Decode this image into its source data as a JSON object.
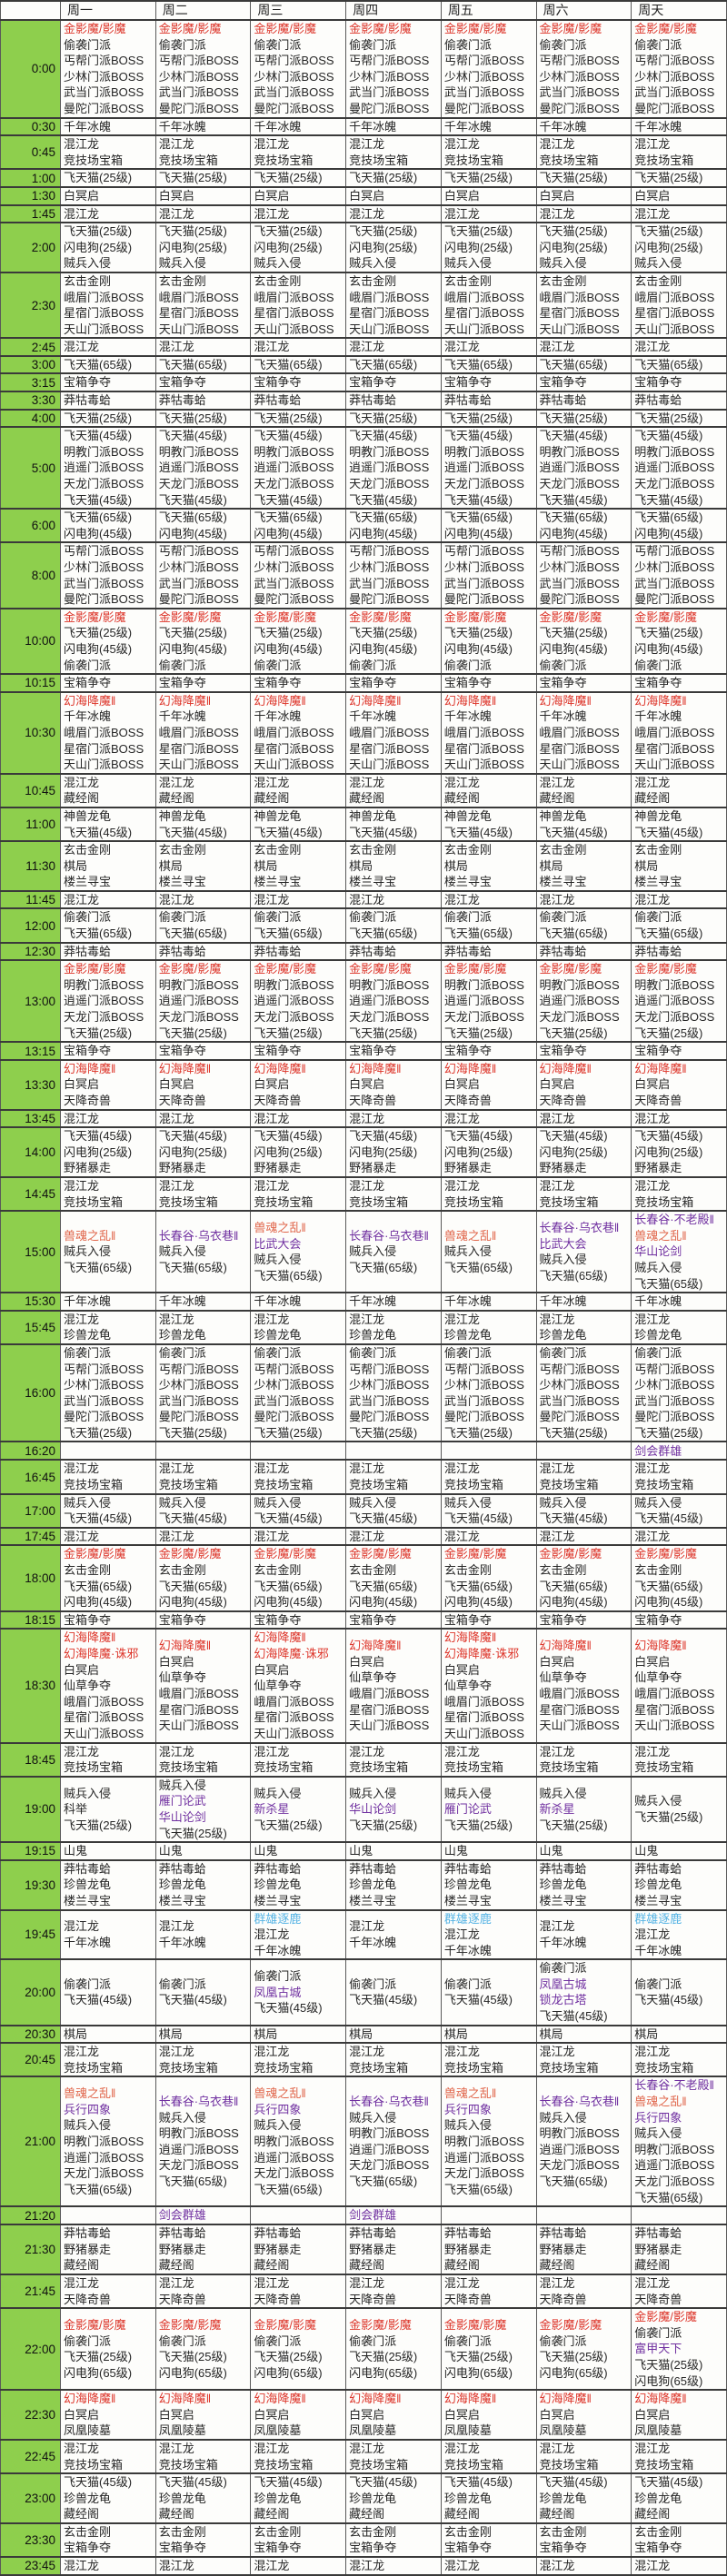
{
  "table": {
    "title": "weekly-event-schedule",
    "corner_label": "",
    "days": [
      "周一",
      "周二",
      "周三",
      "周四",
      "周五",
      "周六",
      "周天"
    ],
    "colors": {
      "time_column_green": "#8ecf4d",
      "event_red": "#dd352a",
      "event_orange_red": "#e0654a",
      "event_purple": "#7030a0",
      "event_light_blue": "#55b3e4",
      "grid_line": "#3a3a3a",
      "cell_background": "#fdfdfb"
    },
    "rows": [
      {
        "time": "0:00",
        "all": [
          {
            "t": "金影魔/影魔",
            "c": "red"
          },
          "偷袭门派",
          "丐帮门派BOSS",
          "少林门派BOSS",
          "武当门派BOSS",
          "曼陀门派BOSS"
        ]
      },
      {
        "time": "0:30",
        "all": [
          "千年冰魄"
        ]
      },
      {
        "time": "0:45",
        "all": [
          "混江龙",
          "竞技场宝箱"
        ]
      },
      {
        "time": "1:00",
        "all": [
          "飞天猫(25级)"
        ]
      },
      {
        "time": "1:30",
        "all": [
          "白冥启"
        ]
      },
      {
        "time": "1:45",
        "all": [
          "混江龙"
        ]
      },
      {
        "time": "2:00",
        "all": [
          "飞天猫(25级)",
          "闪电狗(25级)",
          "贼兵入侵"
        ]
      },
      {
        "time": "2:30",
        "all": [
          "玄击金刚",
          "峨眉门派BOSS",
          "星宿门派BOSS",
          "天山门派BOSS"
        ]
      },
      {
        "time": "2:45",
        "all": [
          "混江龙"
        ]
      },
      {
        "time": "3:00",
        "all": [
          "飞天猫(65级)"
        ]
      },
      {
        "time": "3:15",
        "all": [
          "宝箱争夺"
        ]
      },
      {
        "time": "3:30",
        "all": [
          "莽牯毒蛤"
        ]
      },
      {
        "time": "4:00",
        "all": [
          "飞天猫(25级)"
        ]
      },
      {
        "time": "5:00",
        "all": [
          "飞天猫(45级)",
          "明教门派BOSS",
          "逍遥门派BOSS",
          "天龙门派BOSS",
          "飞天猫(45级)"
        ]
      },
      {
        "time": "6:00",
        "all": [
          "飞天猫(65级)",
          "闪电狗(45级)"
        ]
      },
      {
        "time": "8:00",
        "all": [
          "丐帮门派BOSS",
          "少林门派BOSS",
          "武当门派BOSS",
          "曼陀门派BOSS"
        ]
      },
      {
        "time": "10:00",
        "all": [
          {
            "t": "金影魔/影魔",
            "c": "red"
          },
          "飞天猫(25级)",
          "闪电狗(45级)",
          "偷袭门派"
        ]
      },
      {
        "time": "10:15",
        "all": [
          "宝箱争夺"
        ]
      },
      {
        "time": "10:30",
        "all": [
          {
            "t": "幻海降魔‖",
            "c": "red"
          },
          "千年冰魄",
          "峨眉门派BOSS",
          "星宿门派BOSS",
          "天山门派BOSS"
        ]
      },
      {
        "time": "10:45",
        "all": [
          "混江龙",
          "藏经阁"
        ]
      },
      {
        "time": "11:00",
        "all": [
          "神兽龙龟",
          "飞天猫(45级)"
        ]
      },
      {
        "time": "11:30",
        "all": [
          "玄击金刚",
          "棋局",
          "楼兰寻宝"
        ]
      },
      {
        "time": "11:45",
        "all": [
          "混江龙"
        ]
      },
      {
        "time": "12:00",
        "all": [
          "偷袭门派",
          "飞天猫(65级)"
        ]
      },
      {
        "time": "12:30",
        "all": [
          "莽牯毒蛤"
        ]
      },
      {
        "time": "13:00",
        "all": [
          {
            "t": "金影魔/影魔",
            "c": "red"
          },
          "明教门派BOSS",
          "逍遥门派BOSS",
          "天龙门派BOSS",
          "飞天猫(25级)"
        ]
      },
      {
        "time": "13:15",
        "all": [
          "宝箱争夺"
        ]
      },
      {
        "time": "13:30",
        "all": [
          {
            "t": "幻海降魔‖",
            "c": "red"
          },
          "白冥启",
          "天降奇兽"
        ]
      },
      {
        "time": "13:45",
        "all": [
          "混江龙"
        ]
      },
      {
        "time": "14:00",
        "all": [
          "飞天猫(45级)",
          "闪电狗(25级)",
          "野猪暴走"
        ]
      },
      {
        "time": "14:45",
        "all": [
          "混江龙",
          "竞技场宝箱"
        ]
      },
      {
        "time": "15:00",
        "cells": [
          [
            {
              "t": "兽魂之乱‖",
              "c": "orange"
            },
            "贼兵入侵",
            "飞天猫(65级)"
          ],
          [
            {
              "t": "长春谷·乌衣巷‖",
              "c": "purple"
            },
            "贼兵入侵",
            "飞天猫(65级)"
          ],
          [
            {
              "t": "兽魂之乱‖",
              "c": "orange"
            },
            {
              "t": "比武大会",
              "c": "purple"
            },
            "贼兵入侵",
            "飞天猫(65级)"
          ],
          [
            {
              "t": "长春谷·乌衣巷‖",
              "c": "purple"
            },
            "贼兵入侵",
            "飞天猫(65级)"
          ],
          [
            {
              "t": "兽魂之乱‖",
              "c": "orange"
            },
            "贼兵入侵",
            "飞天猫(65级)"
          ],
          [
            {
              "t": "长春谷·乌衣巷‖",
              "c": "purple"
            },
            {
              "t": "比武大会",
              "c": "purple"
            },
            "贼兵入侵",
            "飞天猫(65级)"
          ],
          [
            {
              "t": "长春谷·不老殿‖",
              "c": "purple"
            },
            {
              "t": "兽魂之乱‖",
              "c": "orange"
            },
            {
              "t": "华山论剑",
              "c": "purple"
            },
            "贼兵入侵",
            "飞天猫(65级)"
          ]
        ]
      },
      {
        "time": "15:30",
        "all": [
          "千年冰魄"
        ]
      },
      {
        "time": "15:45",
        "all": [
          "混江龙",
          "珍兽龙龟"
        ]
      },
      {
        "time": "16:00",
        "all": [
          "偷袭门派",
          "丐帮门派BOSS",
          "少林门派BOSS",
          "武当门派BOSS",
          "曼陀门派BOSS",
          "飞天猫(25级)"
        ]
      },
      {
        "time": "16:20",
        "cells": [
          [],
          [],
          [],
          [],
          [],
          [],
          [
            {
              "t": "剑会群雄",
              "c": "purple"
            }
          ]
        ]
      },
      {
        "time": "16:45",
        "all": [
          "混江龙",
          "竞技场宝箱"
        ]
      },
      {
        "time": "17:00",
        "all": [
          "贼兵入侵",
          "飞天猫(45级)"
        ]
      },
      {
        "time": "17:45",
        "all": [
          "混江龙"
        ]
      },
      {
        "time": "18:00",
        "all": [
          {
            "t": "金影魔/影魔",
            "c": "red"
          },
          "玄击金刚",
          "飞天猫(65级)",
          "闪电狗(45级)"
        ]
      },
      {
        "time": "18:15",
        "all": [
          "宝箱争夺"
        ]
      },
      {
        "time": "18:30",
        "cells": [
          [
            {
              "t": "幻海降魔‖",
              "c": "red"
            },
            {
              "t": "幻海降魔·诛邪",
              "c": "red"
            },
            "白冥启",
            "仙草争夺",
            "峨眉门派BOSS",
            "星宿门派BOSS",
            "天山门派BOSS"
          ],
          [
            {
              "t": "幻海降魔‖",
              "c": "red"
            },
            "白冥启",
            "仙草争夺",
            "峨眉门派BOSS",
            "星宿门派BOSS",
            "天山门派BOSS"
          ],
          [
            {
              "t": "幻海降魔‖",
              "c": "red"
            },
            {
              "t": "幻海降魔·诛邪",
              "c": "red"
            },
            "白冥启",
            "仙草争夺",
            "峨眉门派BOSS",
            "星宿门派BOSS",
            "天山门派BOSS"
          ],
          [
            {
              "t": "幻海降魔‖",
              "c": "red"
            },
            "白冥启",
            "仙草争夺",
            "峨眉门派BOSS",
            "星宿门派BOSS",
            "天山门派BOSS"
          ],
          [
            {
              "t": "幻海降魔‖",
              "c": "red"
            },
            {
              "t": "幻海降魔·诛邪",
              "c": "red"
            },
            "白冥启",
            "仙草争夺",
            "峨眉门派BOSS",
            "星宿门派BOSS",
            "天山门派BOSS"
          ],
          [
            {
              "t": "幻海降魔‖",
              "c": "red"
            },
            "白冥启",
            "仙草争夺",
            "峨眉门派BOSS",
            "星宿门派BOSS",
            "天山门派BOSS"
          ],
          [
            {
              "t": "幻海降魔‖",
              "c": "red"
            },
            "白冥启",
            "仙草争夺",
            "峨眉门派BOSS",
            "星宿门派BOSS",
            "天山门派BOSS"
          ]
        ]
      },
      {
        "time": "18:45",
        "all": [
          "混江龙",
          "竞技场宝箱"
        ]
      },
      {
        "time": "19:00",
        "cells": [
          [
            "贼兵入侵",
            "科举",
            "飞天猫(25级)"
          ],
          [
            "贼兵入侵",
            {
              "t": "雁门论武",
              "c": "purple"
            },
            {
              "t": "华山论剑",
              "c": "purple"
            },
            "飞天猫(25级)"
          ],
          [
            "贼兵入侵",
            {
              "t": "新杀星",
              "c": "purple"
            },
            "飞天猫(25级)"
          ],
          [
            "贼兵入侵",
            {
              "t": "华山论剑",
              "c": "purple"
            },
            "飞天猫(25级)"
          ],
          [
            "贼兵入侵",
            {
              "t": "雁门论武",
              "c": "purple"
            },
            "飞天猫(25级)"
          ],
          [
            "贼兵入侵",
            {
              "t": "新杀星",
              "c": "purple"
            },
            "飞天猫(25级)"
          ],
          [
            "贼兵入侵",
            "飞天猫(25级)"
          ]
        ]
      },
      {
        "time": "19:15",
        "all": [
          "山鬼"
        ]
      },
      {
        "time": "19:30",
        "all": [
          "莽牯毒蛤",
          "珍兽龙龟",
          "楼兰寻宝"
        ]
      },
      {
        "time": "19:45",
        "cells": [
          [
            "混江龙",
            "千年冰魄"
          ],
          [
            "混江龙",
            "千年冰魄"
          ],
          [
            {
              "t": "群雄逐鹿",
              "c": "blue"
            },
            "混江龙",
            "千年冰魄"
          ],
          [
            "混江龙",
            "千年冰魄"
          ],
          [
            {
              "t": "群雄逐鹿",
              "c": "blue"
            },
            "混江龙",
            "千年冰魄"
          ],
          [
            "混江龙",
            "千年冰魄"
          ],
          [
            {
              "t": "群雄逐鹿",
              "c": "blue"
            },
            "混江龙",
            "千年冰魄"
          ]
        ]
      },
      {
        "time": "20:00",
        "cells": [
          [
            "偷袭门派",
            "飞天猫(45级)"
          ],
          [
            "偷袭门派",
            "飞天猫(45级)"
          ],
          [
            "偷袭门派",
            {
              "t": "凤凰古城",
              "c": "purple"
            },
            "飞天猫(45级)"
          ],
          [
            "偷袭门派",
            "飞天猫(45级)"
          ],
          [
            "偷袭门派",
            "飞天猫(45级)"
          ],
          [
            "偷袭门派",
            {
              "t": "凤凰古城",
              "c": "purple"
            },
            {
              "t": "锁龙古塔",
              "c": "purple"
            },
            "飞天猫(45级)"
          ],
          [
            "偷袭门派",
            "飞天猫(45级)"
          ]
        ]
      },
      {
        "time": "20:30",
        "all": [
          "棋局"
        ]
      },
      {
        "time": "20:45",
        "all": [
          "混江龙",
          "竞技场宝箱"
        ]
      },
      {
        "time": "21:00",
        "cells": [
          [
            {
              "t": "兽魂之乱‖",
              "c": "orange"
            },
            {
              "t": "兵行四象",
              "c": "purple"
            },
            "贼兵入侵",
            "明教门派BOSS",
            "逍遥门派BOSS",
            "天龙门派BOSS",
            "飞天猫(65级)"
          ],
          [
            {
              "t": "长春谷·乌衣巷‖",
              "c": "purple"
            },
            "贼兵入侵",
            "明教门派BOSS",
            "逍遥门派BOSS",
            "天龙门派BOSS",
            "飞天猫(65级)"
          ],
          [
            {
              "t": "兽魂之乱‖",
              "c": "orange"
            },
            {
              "t": "兵行四象",
              "c": "purple"
            },
            "贼兵入侵",
            "明教门派BOSS",
            "逍遥门派BOSS",
            "天龙门派BOSS",
            "飞天猫(65级)"
          ],
          [
            {
              "t": "长春谷·乌衣巷‖",
              "c": "purple"
            },
            "贼兵入侵",
            "明教门派BOSS",
            "逍遥门派BOSS",
            "天龙门派BOSS",
            "飞天猫(65级)"
          ],
          [
            {
              "t": "兽魂之乱‖",
              "c": "orange"
            },
            {
              "t": "兵行四象",
              "c": "purple"
            },
            "贼兵入侵",
            "明教门派BOSS",
            "逍遥门派BOSS",
            "天龙门派BOSS",
            "飞天猫(65级)"
          ],
          [
            {
              "t": "长春谷·乌衣巷‖",
              "c": "purple"
            },
            "贼兵入侵",
            "明教门派BOSS",
            "逍遥门派BOSS",
            "天龙门派BOSS",
            "飞天猫(65级)"
          ],
          [
            {
              "t": "长春谷·不老殿‖",
              "c": "purple"
            },
            {
              "t": "兽魂之乱‖",
              "c": "orange"
            },
            {
              "t": "兵行四象",
              "c": "purple"
            },
            "贼兵入侵",
            "明教门派BOSS",
            "逍遥门派BOSS",
            "天龙门派BOSS",
            "飞天猫(65级)"
          ]
        ]
      },
      {
        "time": "21:20",
        "cells": [
          [],
          [
            {
              "t": "剑会群雄",
              "c": "purple"
            }
          ],
          [],
          [
            {
              "t": "剑会群雄",
              "c": "purple"
            }
          ],
          [],
          [],
          []
        ]
      },
      {
        "time": "21:30",
        "all": [
          "莽牯毒蛤",
          "野猪暴走",
          "藏经阁"
        ]
      },
      {
        "time": "21:45",
        "all": [
          "混江龙",
          "天降奇兽"
        ]
      },
      {
        "time": "22:00",
        "cells": [
          [
            {
              "t": "金影魔/影魔",
              "c": "red"
            },
            "偷袭门派",
            "飞天猫(25级)",
            "闪电狗(65级)"
          ],
          [
            {
              "t": "金影魔/影魔",
              "c": "red"
            },
            "偷袭门派",
            "飞天猫(25级)",
            "闪电狗(65级)"
          ],
          [
            {
              "t": "金影魔/影魔",
              "c": "red"
            },
            "偷袭门派",
            "飞天猫(25级)",
            "闪电狗(65级)"
          ],
          [
            {
              "t": "金影魔/影魔",
              "c": "red"
            },
            "偷袭门派",
            "飞天猫(25级)",
            "闪电狗(65级)"
          ],
          [
            {
              "t": "金影魔/影魔",
              "c": "red"
            },
            "偷袭门派",
            "飞天猫(25级)",
            "闪电狗(65级)"
          ],
          [
            {
              "t": "金影魔/影魔",
              "c": "red"
            },
            "偷袭门派",
            "飞天猫(25级)",
            "闪电狗(65级)"
          ],
          [
            {
              "t": "金影魔/影魔",
              "c": "red"
            },
            "偷袭门派",
            {
              "t": "富甲天下",
              "c": "purple"
            },
            "飞天猫(25级)",
            "闪电狗(65级)"
          ]
        ]
      },
      {
        "time": "22:30",
        "all": [
          {
            "t": "幻海降魔‖",
            "c": "red"
          },
          "白冥启",
          "凤凰陵墓"
        ]
      },
      {
        "time": "22:45",
        "all": [
          "混江龙",
          "竞技场宝箱"
        ]
      },
      {
        "time": "23:00",
        "all": [
          "飞天猫(45级)",
          "珍兽龙龟",
          "藏经阁"
        ]
      },
      {
        "time": "23:30",
        "all": [
          "玄击金刚",
          "宝箱争夺"
        ]
      },
      {
        "time": "23:45",
        "all": [
          "混江龙"
        ]
      }
    ]
  }
}
